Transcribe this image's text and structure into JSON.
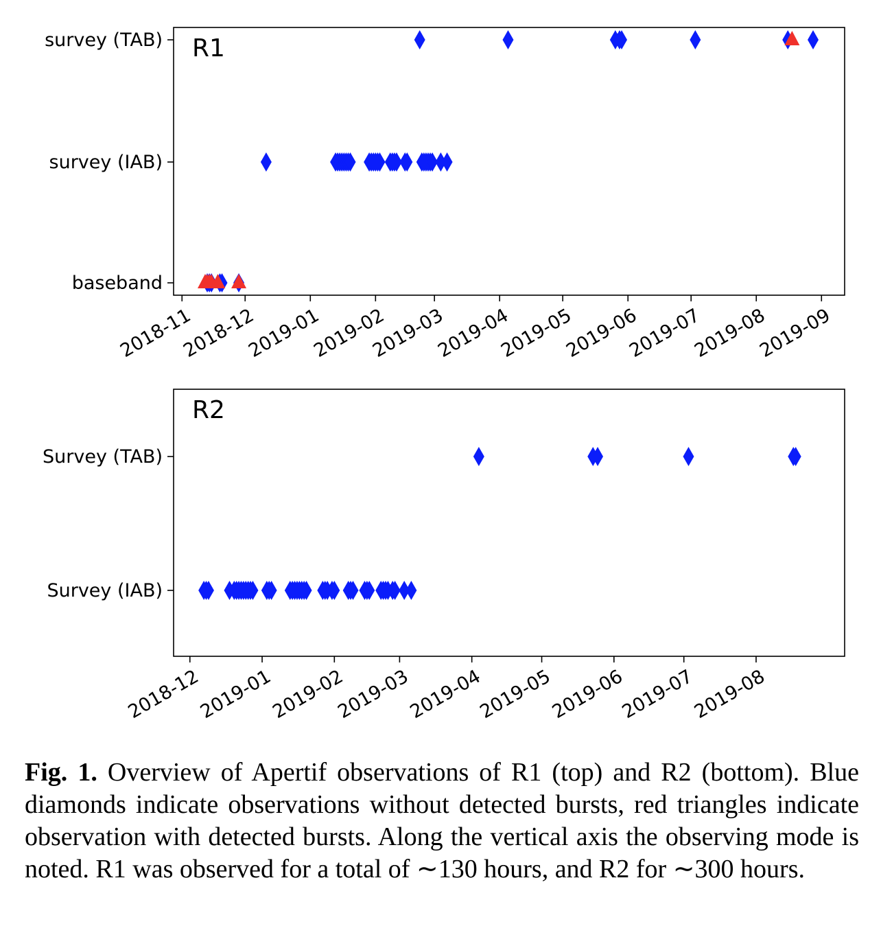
{
  "colors": {
    "no_burst": "#0b1dfa",
    "burst": "#f0312b",
    "axis": "#000000"
  },
  "chart_data": [
    {
      "type": "scatter",
      "panel_label": "R1",
      "x_type": "date",
      "xlim": [
        "2018-10-28",
        "2019-09-12"
      ],
      "x_ticks": [
        "2018-11",
        "2018-12",
        "2019-01",
        "2019-02",
        "2019-03",
        "2019-04",
        "2019-05",
        "2019-06",
        "2019-07",
        "2019-08",
        "2019-09"
      ],
      "y_categories": [
        "baseband",
        "survey (IAB)",
        "survey (TAB)"
      ],
      "series": [
        {
          "marker": "diamond",
          "points": [
            {
              "x": "2019-02-22",
              "y": "survey (TAB)"
            },
            {
              "x": "2019-04-05",
              "y": "survey (TAB)"
            },
            {
              "x": "2019-05-26",
              "y": "survey (TAB)"
            },
            {
              "x": "2019-05-28",
              "y": "survey (TAB)"
            },
            {
              "x": "2019-05-29",
              "y": "survey (TAB)"
            },
            {
              "x": "2019-07-03",
              "y": "survey (TAB)"
            },
            {
              "x": "2019-08-16",
              "y": "survey (TAB)"
            },
            {
              "x": "2019-08-28",
              "y": "survey (TAB)"
            },
            {
              "x": "2018-12-11",
              "y": "survey (IAB)"
            },
            {
              "x": "2019-01-13",
              "y": "survey (IAB)"
            },
            {
              "x": "2019-01-14",
              "y": "survey (IAB)"
            },
            {
              "x": "2019-01-15",
              "y": "survey (IAB)"
            },
            {
              "x": "2019-01-16",
              "y": "survey (IAB)"
            },
            {
              "x": "2019-01-17",
              "y": "survey (IAB)"
            },
            {
              "x": "2019-01-18",
              "y": "survey (IAB)"
            },
            {
              "x": "2019-01-19",
              "y": "survey (IAB)"
            },
            {
              "x": "2019-01-20",
              "y": "survey (IAB)"
            },
            {
              "x": "2019-01-29",
              "y": "survey (IAB)"
            },
            {
              "x": "2019-01-30",
              "y": "survey (IAB)"
            },
            {
              "x": "2019-01-31",
              "y": "survey (IAB)"
            },
            {
              "x": "2019-02-01",
              "y": "survey (IAB)"
            },
            {
              "x": "2019-02-02",
              "y": "survey (IAB)"
            },
            {
              "x": "2019-02-03",
              "y": "survey (IAB)"
            },
            {
              "x": "2019-02-08",
              "y": "survey (IAB)"
            },
            {
              "x": "2019-02-09",
              "y": "survey (IAB)"
            },
            {
              "x": "2019-02-10",
              "y": "survey (IAB)"
            },
            {
              "x": "2019-02-11",
              "y": "survey (IAB)"
            },
            {
              "x": "2019-02-15",
              "y": "survey (IAB)"
            },
            {
              "x": "2019-02-16",
              "y": "survey (IAB)"
            },
            {
              "x": "2019-02-23",
              "y": "survey (IAB)"
            },
            {
              "x": "2019-02-24",
              "y": "survey (IAB)"
            },
            {
              "x": "2019-02-25",
              "y": "survey (IAB)"
            },
            {
              "x": "2019-02-26",
              "y": "survey (IAB)"
            },
            {
              "x": "2019-02-27",
              "y": "survey (IAB)"
            },
            {
              "x": "2019-02-28",
              "y": "survey (IAB)"
            },
            {
              "x": "2019-03-04",
              "y": "survey (IAB)"
            },
            {
              "x": "2019-03-07",
              "y": "survey (IAB)"
            },
            {
              "x": "2018-11-13",
              "y": "baseband"
            },
            {
              "x": "2018-11-14",
              "y": "baseband"
            },
            {
              "x": "2018-11-15",
              "y": "baseband"
            },
            {
              "x": "2018-11-19",
              "y": "baseband"
            },
            {
              "x": "2018-11-20",
              "y": "baseband"
            },
            {
              "x": "2018-11-28",
              "y": "baseband"
            }
          ]
        },
        {
          "marker": "triangle",
          "points": [
            {
              "x": "2019-08-18",
              "y": "survey (TAB)"
            },
            {
              "x": "2018-11-12",
              "y": "baseband"
            },
            {
              "x": "2018-11-13",
              "y": "baseband"
            },
            {
              "x": "2018-11-14",
              "y": "baseband"
            },
            {
              "x": "2018-11-15",
              "y": "baseband"
            },
            {
              "x": "2018-11-18",
              "y": "baseband"
            },
            {
              "x": "2018-11-28",
              "y": "baseband"
            }
          ]
        }
      ]
    },
    {
      "type": "scatter",
      "panel_label": "R2",
      "x_type": "date",
      "xlim": [
        "2018-11-24",
        "2019-09-08"
      ],
      "x_ticks": [
        "2018-12",
        "2019-01",
        "2019-02",
        "2019-03",
        "2019-04",
        "2019-05",
        "2019-06",
        "2019-07",
        "2019-08"
      ],
      "y_categories": [
        "Survey (IAB)",
        "Survey (TAB)"
      ],
      "series": [
        {
          "marker": "diamond",
          "points": [
            {
              "x": "2019-04-04",
              "y": "Survey (TAB)"
            },
            {
              "x": "2019-05-23",
              "y": "Survey (TAB)"
            },
            {
              "x": "2019-05-25",
              "y": "Survey (TAB)"
            },
            {
              "x": "2019-07-03",
              "y": "Survey (TAB)"
            },
            {
              "x": "2019-08-17",
              "y": "Survey (TAB)"
            },
            {
              "x": "2019-08-18",
              "y": "Survey (TAB)"
            },
            {
              "x": "2018-12-07",
              "y": "Survey (IAB)"
            },
            {
              "x": "2018-12-08",
              "y": "Survey (IAB)"
            },
            {
              "x": "2018-12-09",
              "y": "Survey (IAB)"
            },
            {
              "x": "2018-12-18",
              "y": "Survey (IAB)"
            },
            {
              "x": "2018-12-20",
              "y": "Survey (IAB)"
            },
            {
              "x": "2018-12-21",
              "y": "Survey (IAB)"
            },
            {
              "x": "2018-12-22",
              "y": "Survey (IAB)"
            },
            {
              "x": "2018-12-23",
              "y": "Survey (IAB)"
            },
            {
              "x": "2018-12-24",
              "y": "Survey (IAB)"
            },
            {
              "x": "2018-12-25",
              "y": "Survey (IAB)"
            },
            {
              "x": "2018-12-26",
              "y": "Survey (IAB)"
            },
            {
              "x": "2018-12-27",
              "y": "Survey (IAB)"
            },
            {
              "x": "2018-12-28",
              "y": "Survey (IAB)"
            },
            {
              "x": "2019-01-03",
              "y": "Survey (IAB)"
            },
            {
              "x": "2019-01-04",
              "y": "Survey (IAB)"
            },
            {
              "x": "2019-01-05",
              "y": "Survey (IAB)"
            },
            {
              "x": "2019-01-13",
              "y": "Survey (IAB)"
            },
            {
              "x": "2019-01-14",
              "y": "Survey (IAB)"
            },
            {
              "x": "2019-01-15",
              "y": "Survey (IAB)"
            },
            {
              "x": "2019-01-16",
              "y": "Survey (IAB)"
            },
            {
              "x": "2019-01-17",
              "y": "Survey (IAB)"
            },
            {
              "x": "2019-01-18",
              "y": "Survey (IAB)"
            },
            {
              "x": "2019-01-19",
              "y": "Survey (IAB)"
            },
            {
              "x": "2019-01-20",
              "y": "Survey (IAB)"
            },
            {
              "x": "2019-01-27",
              "y": "Survey (IAB)"
            },
            {
              "x": "2019-01-28",
              "y": "Survey (IAB)"
            },
            {
              "x": "2019-01-29",
              "y": "Survey (IAB)"
            },
            {
              "x": "2019-01-31",
              "y": "Survey (IAB)"
            },
            {
              "x": "2019-02-01",
              "y": "Survey (IAB)"
            },
            {
              "x": "2019-02-07",
              "y": "Survey (IAB)"
            },
            {
              "x": "2019-02-08",
              "y": "Survey (IAB)"
            },
            {
              "x": "2019-02-09",
              "y": "Survey (IAB)"
            },
            {
              "x": "2019-02-14",
              "y": "Survey (IAB)"
            },
            {
              "x": "2019-02-15",
              "y": "Survey (IAB)"
            },
            {
              "x": "2019-02-16",
              "y": "Survey (IAB)"
            },
            {
              "x": "2019-02-21",
              "y": "Survey (IAB)"
            },
            {
              "x": "2019-02-22",
              "y": "Survey (IAB)"
            },
            {
              "x": "2019-02-23",
              "y": "Survey (IAB)"
            },
            {
              "x": "2019-02-24",
              "y": "Survey (IAB)"
            },
            {
              "x": "2019-02-26",
              "y": "Survey (IAB)"
            },
            {
              "x": "2019-02-27",
              "y": "Survey (IAB)"
            },
            {
              "x": "2019-03-03",
              "y": "Survey (IAB)"
            },
            {
              "x": "2019-03-06",
              "y": "Survey (IAB)"
            }
          ]
        }
      ]
    }
  ],
  "caption": {
    "label": "Fig. 1.",
    "text": " Overview of Apertif observations of R1 (top) and R2 (bottom). Blue diamonds indicate observations without detected bursts, red triangles indicate observation with detected bursts. Along the vertical axis the observing mode is noted. R1 was observed for a total of ∼130 hours, and R2 for ∼300 hours."
  }
}
